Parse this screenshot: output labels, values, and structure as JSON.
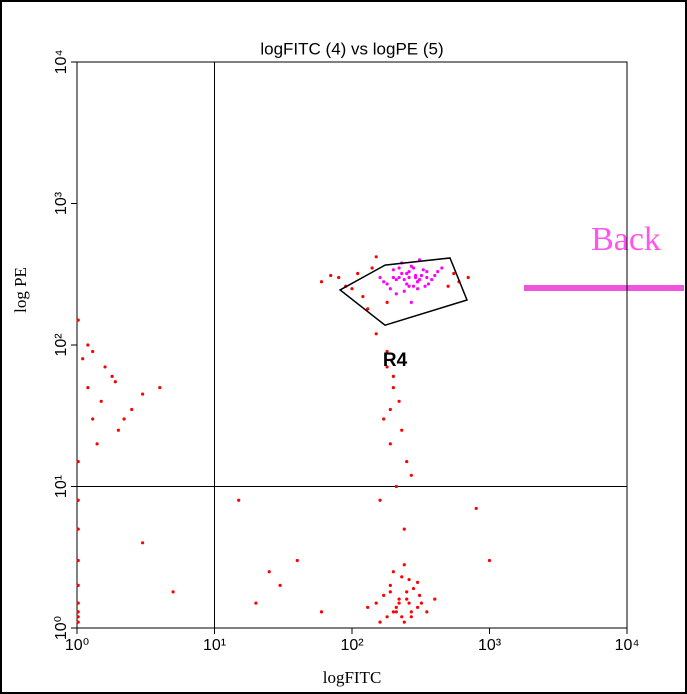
{
  "chart_data": {
    "type": "scatter",
    "title": "logFITC (4) vs logPE (5)",
    "xlabel": "logFITC",
    "ylabel": "log PE",
    "xscale": "log",
    "yscale": "log",
    "xlim": [
      1,
      10000
    ],
    "ylim": [
      1,
      10000
    ],
    "xticks": [
      {
        "value": 1,
        "label": "10⁰"
      },
      {
        "value": 10,
        "label": "10¹"
      },
      {
        "value": 100,
        "label": "10²"
      },
      {
        "value": 1000,
        "label": "10³"
      },
      {
        "value": 10000,
        "label": "10⁴"
      }
    ],
    "yticks": [
      {
        "value": 1,
        "label": "10⁰"
      },
      {
        "value": 10,
        "label": "10¹"
      },
      {
        "value": 100,
        "label": "10²"
      },
      {
        "value": 1000,
        "label": "10³"
      },
      {
        "value": 10000,
        "label": "10⁴"
      }
    ],
    "quadrant_lines": {
      "x": 10,
      "y": 10
    },
    "gate": {
      "label": "R4",
      "x": [
        82,
        174,
        516,
        686,
        174
      ],
      "y": [
        245,
        367,
        412,
        208,
        138
      ]
    },
    "annotation": "Back",
    "series": [
      {
        "color": "#ff0000",
        "x": [
          150,
          200,
          250,
          300,
          180,
          220,
          270,
          320,
          190,
          240,
          210,
          260,
          170,
          230,
          280,
          350,
          200,
          250,
          160,
          300,
          220,
          190,
          240,
          270,
          210,
          400,
          130,
          230,
          260,
          310,
          60,
          80,
          100,
          120,
          140,
          500,
          600,
          550,
          130,
          110,
          90,
          700,
          150,
          70,
          180,
          150,
          180,
          200,
          220,
          170,
          190,
          250,
          210,
          160,
          230,
          200,
          240,
          180,
          270,
          190,
          1.2,
          1.5,
          1.3,
          2,
          2.5,
          1.8,
          1.1,
          3,
          1.4,
          1.6,
          2.2,
          1.3,
          1.9,
          4,
          1.2,
          1.02,
          1.02,
          1.02,
          1.02,
          1.02,
          1.02,
          1.02,
          1.02,
          1.02,
          1.02,
          20,
          30,
          40,
          5,
          3,
          15,
          800,
          1000,
          60,
          25
        ],
        "values": [
          1.5,
          1.3,
          1.8,
          1.4,
          1.2,
          1.6,
          1.3,
          1.5,
          2.0,
          1.1,
          1.4,
          2.2,
          1.7,
          1.2,
          1.9,
          1.3,
          2.5,
          1.6,
          1.1,
          2.1,
          1.5,
          1.8,
          2.8,
          1.2,
          1.3,
          1.6,
          1.4,
          2.3,
          1.5,
          1.7,
          280,
          300,
          250,
          220,
          350,
          260,
          280,
          320,
          180,
          320,
          260,
          300,
          420,
          310,
          200,
          120,
          90,
          60,
          40,
          30,
          20,
          15,
          10,
          8,
          25,
          50,
          5,
          70,
          12,
          35,
          50,
          40,
          30,
          25,
          35,
          60,
          80,
          45,
          20,
          70,
          30,
          90,
          55,
          50,
          100,
          1.2,
          1.5,
          2,
          3,
          5,
          8,
          15,
          150,
          1.1,
          1.3,
          1.5,
          2,
          3,
          1.8,
          4,
          8,
          7,
          3,
          1.3,
          2.5
        ]
      },
      {
        "color": "#ff00ff",
        "x": [
          200,
          250,
          300,
          220,
          280,
          350,
          180,
          230,
          260,
          310,
          400,
          190,
          240,
          270,
          330,
          210,
          290,
          360,
          170,
          420,
          260,
          300,
          230,
          320,
          250,
          280,
          210,
          380,
          340,
          200,
          160,
          450,
          270,
          310,
          240,
          350,
          290,
          220,
          260,
          300
        ],
        "values": [
          300,
          320,
          280,
          350,
          260,
          300,
          270,
          380,
          330,
          290,
          310,
          250,
          240,
          360,
          340,
          290,
          300,
          270,
          280,
          330,
          300,
          250,
          320,
          310,
          270,
          350,
          230,
          290,
          260,
          340,
          300,
          350,
          200,
          400,
          290,
          330,
          310,
          300,
          260,
          280
        ]
      }
    ]
  }
}
